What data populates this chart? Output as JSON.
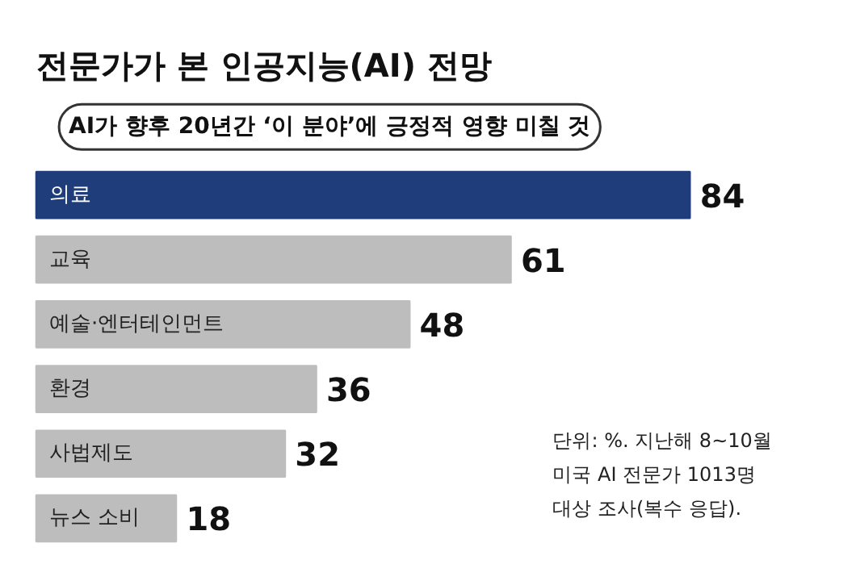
{
  "chart_data": {
    "type": "bar",
    "orientation": "horizontal",
    "title": "전문가가 본 인공지능(AI) 전망",
    "subtitle": "AI가 향후 20년간 ‘이 분야’에 긍정적 영향 미칠 것",
    "categories": [
      "의료",
      "교육",
      "예술·엔터테인먼트",
      "환경",
      "사법제도",
      "뉴스 소비"
    ],
    "values": [
      84,
      61,
      48,
      36,
      32,
      18
    ],
    "colors": [
      "#1f3d7a",
      "#bdbdbd",
      "#bdbdbd",
      "#bdbdbd",
      "#bdbdbd",
      "#bdbdbd"
    ],
    "data_labels": true,
    "annotations": [
      "단위: %. 지난해 8~10월 미국 AI 전문가 1013명 대상 조사(복수 응답)."
    ]
  }
}
